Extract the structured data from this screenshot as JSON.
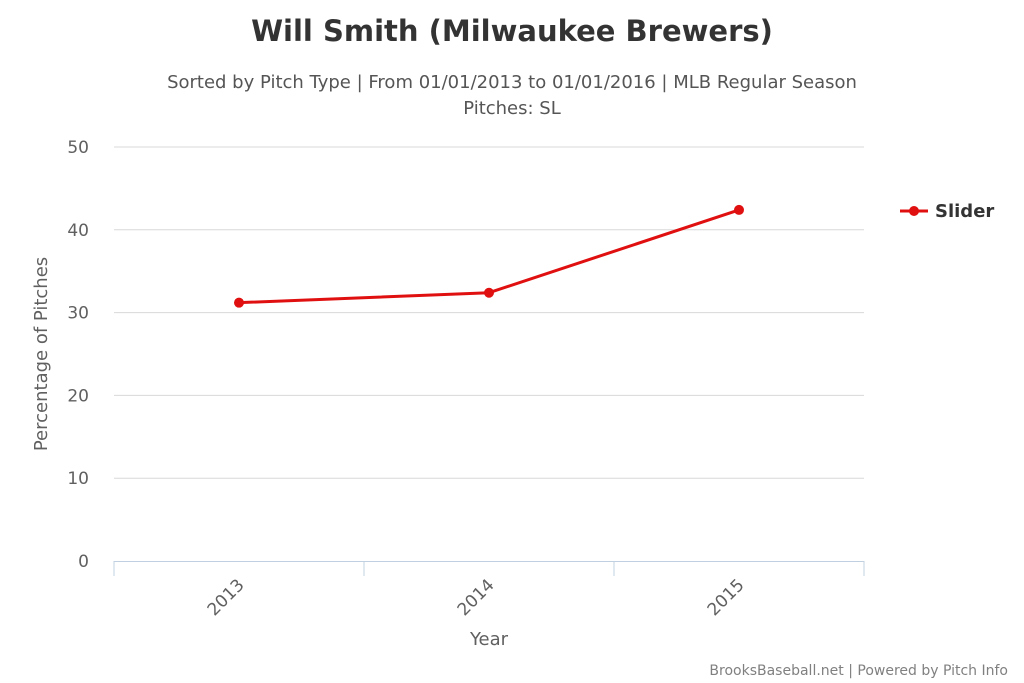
{
  "chart_data": {
    "type": "line",
    "title": "Will Smith (Milwaukee Brewers)",
    "subtitle_lines": [
      "Sorted by Pitch Type | From 01/01/2013 to 01/01/2016 | MLB Regular Season",
      "Pitches: SL"
    ],
    "xlabel": "Year",
    "ylabel": "Percentage of Pitches",
    "categories": [
      "2013",
      "2014",
      "2015"
    ],
    "ylim": [
      0,
      50
    ],
    "yticks": [
      0,
      10,
      20,
      30,
      40,
      50
    ],
    "grid": true,
    "legend_position": "right",
    "series": [
      {
        "name": "Slider",
        "color": "#e01010",
        "values": [
          31.2,
          32.4,
          42.4
        ]
      }
    ]
  },
  "credits": "BrooksBaseball.net | Powered by Pitch Info"
}
